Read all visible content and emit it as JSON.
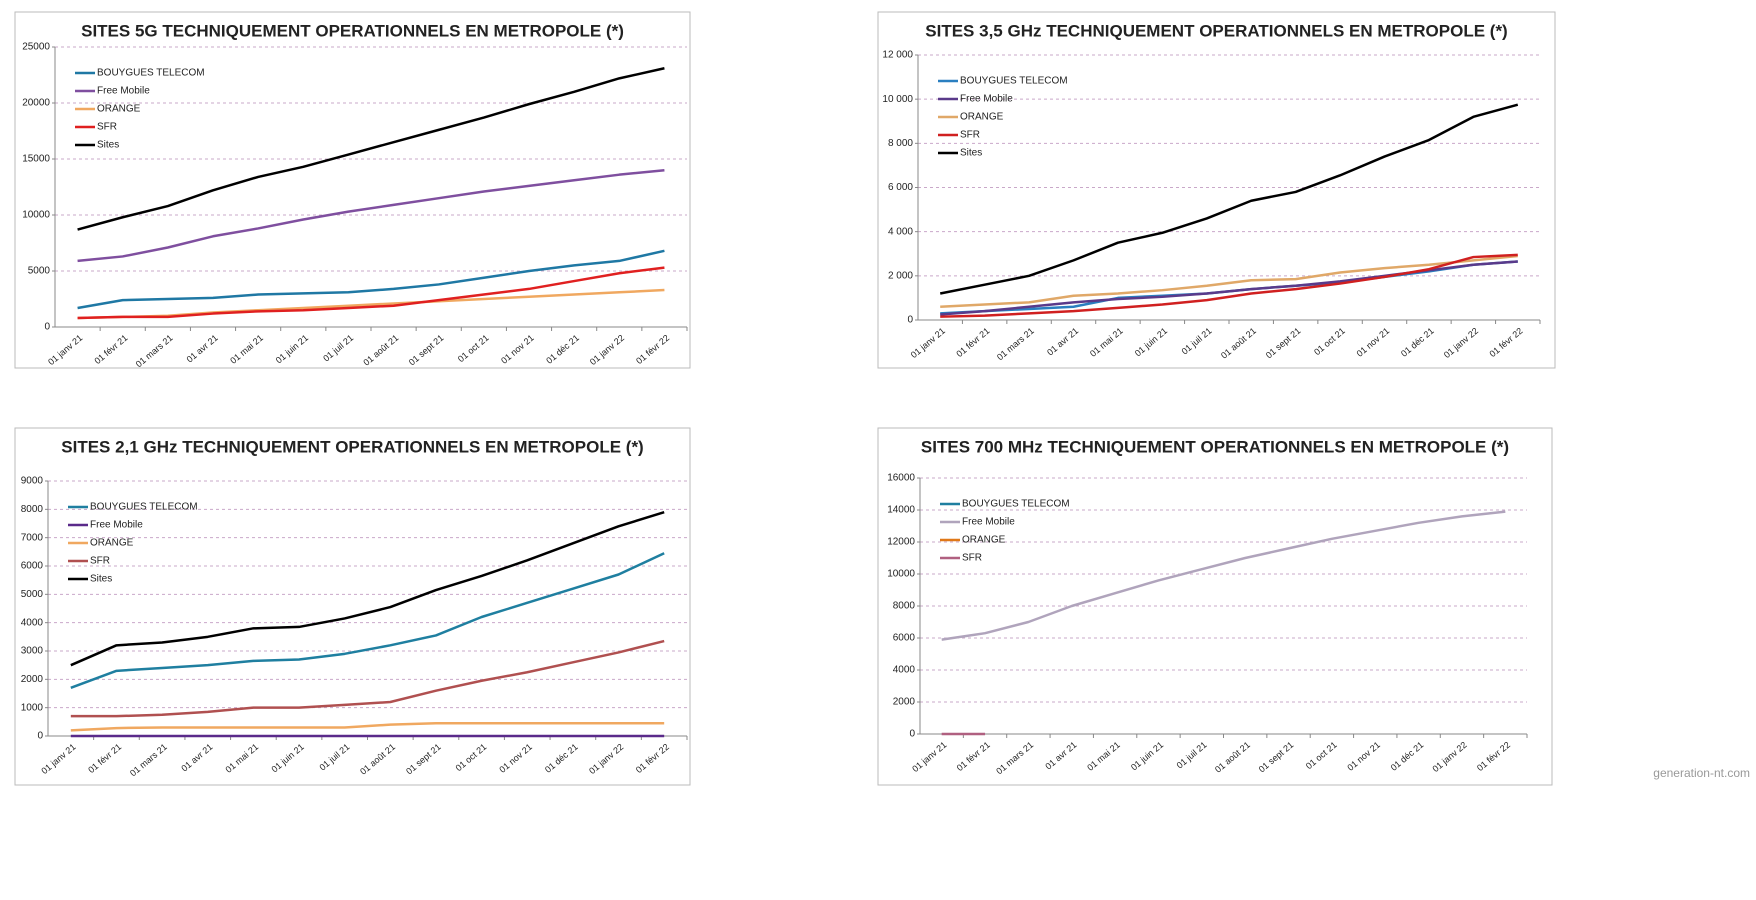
{
  "chart_data": [
    {
      "type": "line",
      "title": "SITES 5G TECHNIQUEMENT OPERATIONNELS EN METROPOLE (*)",
      "categories": [
        "01 janv 21",
        "01 févr 21",
        "01 mars 21",
        "01 avr 21",
        "01 mai 21",
        "01 juin 21",
        "01 juil 21",
        "01 août 21",
        "01 sept 21",
        "01 oct 21",
        "01 nov 21",
        "01 déc 21",
        "01 janv 22",
        "01 févr 22"
      ],
      "ylim": [
        0,
        25000
      ],
      "yticks": [
        0,
        5000,
        10000,
        15000,
        20000,
        25000
      ],
      "grid": true,
      "legend": "upper left",
      "series": [
        {
          "name": "BOUYGUES TELECOM",
          "color": "#1f78a4",
          "values": [
            1700,
            2400,
            2500,
            2600,
            2900,
            3000,
            3100,
            3400,
            3800,
            4400,
            5000,
            5500,
            5900,
            6800
          ]
        },
        {
          "name": "Free Mobile",
          "color": "#7f4f9f",
          "values": [
            5900,
            6300,
            7100,
            8100,
            8800,
            9600,
            10300,
            10900,
            11500,
            12100,
            12600,
            13100,
            13600,
            14000
          ]
        },
        {
          "name": "ORANGE",
          "color": "#f0a860",
          "values": [
            800,
            900,
            1000,
            1300,
            1500,
            1700,
            1900,
            2100,
            2300,
            2500,
            2700,
            2900,
            3100,
            3300
          ]
        },
        {
          "name": "SFR",
          "color": "#e02020",
          "values": [
            800,
            900,
            900,
            1200,
            1400,
            1500,
            1700,
            1900,
            2400,
            2900,
            3400,
            4100,
            4800,
            5300
          ]
        },
        {
          "name": "Sites",
          "color": "#000000",
          "values": [
            8700,
            9800,
            10800,
            12200,
            13400,
            14300,
            15400,
            16500,
            17600,
            18700,
            19900,
            21000,
            22200,
            23100
          ]
        }
      ]
    },
    {
      "type": "line",
      "title": "SITES 3,5 GHz TECHNIQUEMENT OPERATIONNELS EN METROPOLE (*)",
      "categories": [
        "01 janv 21",
        "01 févr 21",
        "01 mars 21",
        "01 avr 21",
        "01 mai 21",
        "01 juin 21",
        "01 juil 21",
        "01 août 21",
        "01 sept 21",
        "01 oct 21",
        "01 nov 21",
        "01 déc 21",
        "01 janv 22",
        "01 févr 22"
      ],
      "ylim": [
        0,
        12000
      ],
      "yticks": [
        0,
        {
          "value": 2000,
          "label": "2 000"
        },
        {
          "value": 4000,
          "label": "4 000"
        },
        {
          "value": 6000,
          "label": "6 000"
        },
        {
          "value": 8000,
          "label": "8 000"
        },
        {
          "value": 10000,
          "label": "10 000"
        },
        {
          "value": 12000,
          "label": "12 000"
        }
      ],
      "grid": true,
      "legend": "upper left",
      "series": [
        {
          "name": "BOUYGUES TELECOM",
          "color": "#2a7fc0",
          "values": [
            300,
            400,
            500,
            600,
            1000,
            1100,
            1200,
            1400,
            1550,
            1700,
            1950,
            2200,
            2500,
            2650
          ]
        },
        {
          "name": "Free Mobile",
          "color": "#5a3a8a",
          "values": [
            250,
            400,
            600,
            800,
            950,
            1050,
            1200,
            1400,
            1550,
            1750,
            2000,
            2250,
            2500,
            2650
          ]
        },
        {
          "name": "ORANGE",
          "color": "#e0a868",
          "values": [
            600,
            700,
            800,
            1100,
            1200,
            1350,
            1550,
            1800,
            1850,
            2150,
            2350,
            2500,
            2700,
            2900
          ]
        },
        {
          "name": "SFR",
          "color": "#d02020",
          "values": [
            150,
            200,
            300,
            400,
            550,
            700,
            900,
            1200,
            1400,
            1650,
            1950,
            2300,
            2850,
            2950
          ]
        },
        {
          "name": "Sites",
          "color": "#000000",
          "values": [
            1200,
            1600,
            2000,
            2700,
            3500,
            3950,
            4600,
            5400,
            5800,
            6550,
            7400,
            8150,
            9200,
            9750
          ]
        }
      ]
    },
    {
      "type": "line",
      "title": "SITES 2,1 GHz TECHNIQUEMENT OPERATIONNELS EN METROPOLE (*)",
      "categories": [
        "01 janv 21",
        "01 févr 21",
        "01 mars 21",
        "01 avr 21",
        "01 mai 21",
        "01 juin 21",
        "01 juil 21",
        "01 août 21",
        "01 sept 21",
        "01 oct 21",
        "01 nov 21",
        "01 déc 21",
        "01 janv 22",
        "01 févr 22"
      ],
      "ylim": [
        0,
        9000
      ],
      "yticks": [
        0,
        1000,
        2000,
        3000,
        4000,
        5000,
        6000,
        7000,
        8000,
        9000
      ],
      "grid": true,
      "legend": "upper left",
      "series": [
        {
          "name": "BOUYGUES TELECOM",
          "color": "#1f7fa0",
          "values": [
            1700,
            2300,
            2400,
            2500,
            2650,
            2700,
            2900,
            3200,
            3550,
            4200,
            4700,
            5200,
            5700,
            6450
          ]
        },
        {
          "name": "Free Mobile",
          "color": "#5a2a8a",
          "values": [
            0,
            0,
            0,
            0,
            0,
            0,
            0,
            0,
            0,
            0,
            0,
            0,
            0,
            0
          ]
        },
        {
          "name": "ORANGE",
          "color": "#f0a860",
          "values": [
            200,
            280,
            300,
            300,
            300,
            300,
            300,
            400,
            450,
            450,
            450,
            450,
            450,
            450
          ]
        },
        {
          "name": "SFR",
          "color": "#b05050",
          "values": [
            700,
            700,
            750,
            850,
            1000,
            1000,
            1100,
            1200,
            1600,
            1950,
            2250,
            2600,
            2950,
            3350
          ]
        },
        {
          "name": "Sites",
          "color": "#000000",
          "values": [
            2500,
            3200,
            3300,
            3500,
            3800,
            3850,
            4150,
            4550,
            5150,
            5650,
            6200,
            6800,
            7400,
            7900
          ]
        }
      ]
    },
    {
      "type": "line",
      "title": "SITES 700 MHz TECHNIQUEMENT OPERATIONNELS EN METROPOLE (*)",
      "categories": [
        "01 janv 21",
        "01 févr 21",
        "01 mars 21",
        "01 avr 21",
        "01 mai 21",
        "01 juin 21",
        "01 juil 21",
        "01 août 21",
        "01 sept 21",
        "01 oct 21",
        "01 nov 21",
        "01 déc 21",
        "01 janv 22",
        "01 févr 22"
      ],
      "ylim": [
        0,
        16000
      ],
      "yticks": [
        0,
        2000,
        4000,
        6000,
        8000,
        10000,
        12000,
        14000,
        16000
      ],
      "grid": true,
      "legend": "upper left",
      "series": [
        {
          "name": "BOUYGUES TELECOM",
          "color": "#1f7fa0",
          "values": [
            null,
            null,
            null,
            null,
            null,
            null,
            null,
            null,
            null,
            null,
            null,
            null,
            null,
            null
          ]
        },
        {
          "name": "Free Mobile",
          "color": "#b0a4bc",
          "values": [
            5900,
            6300,
            7000,
            8000,
            8800,
            9600,
            10300,
            11000,
            11600,
            12200,
            12700,
            13200,
            13600,
            13900
          ]
        },
        {
          "name": "ORANGE",
          "color": "#e07818",
          "values": [
            null,
            null,
            null,
            null,
            null,
            null,
            null,
            null,
            null,
            null,
            null,
            null,
            null,
            null
          ]
        },
        {
          "name": "SFR",
          "color": "#b06080",
          "values": [
            0,
            0,
            null,
            null,
            null,
            null,
            null,
            null,
            null,
            null,
            null,
            null,
            null,
            null
          ]
        }
      ]
    }
  ],
  "watermark": "generation-nt.com"
}
